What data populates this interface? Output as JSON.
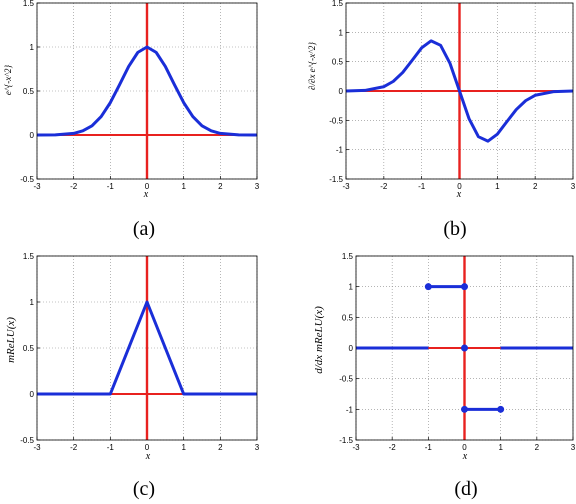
{
  "figure": {
    "panels": [
      {
        "caption": "(a)",
        "xlabel": "x",
        "ylabel": "e^{-x^2}"
      },
      {
        "caption": "(b)",
        "xlabel": "x",
        "ylabel": "∂/∂x e^{-x^2}"
      },
      {
        "caption": "(c)",
        "xlabel": "x",
        "ylabel": "mReLU(x)"
      },
      {
        "caption": "(d)",
        "xlabel": "x",
        "ylabel": "d/dx mReLU(x)"
      }
    ]
  },
  "chart_data": [
    {
      "type": "line",
      "title": "",
      "caption": "(a)",
      "xlabel": "x",
      "ylabel": "e^{-x^2}",
      "xlim": [
        -3,
        3
      ],
      "ylim": [
        -0.5,
        1.5
      ],
      "xticks": [
        "-3",
        "-2",
        "-1",
        "0",
        "1",
        "2",
        "3"
      ],
      "yticks": [
        "-0.5",
        "0",
        "0.5",
        "1",
        "1.5"
      ],
      "grid": true,
      "reference_lines": {
        "x": 0,
        "y": 0,
        "color": "#e8211f"
      },
      "series": [
        {
          "color": "#1a2ed8",
          "x": [
            -3,
            -2.5,
            -2,
            -1.75,
            -1.5,
            -1.25,
            -1,
            -0.75,
            -0.5,
            -0.25,
            0,
            0.25,
            0.5,
            0.75,
            1,
            1.25,
            1.5,
            1.75,
            2,
            2.5,
            3
          ],
          "y": [
            0,
            0.002,
            0.018,
            0.047,
            0.105,
            0.21,
            0.368,
            0.57,
            0.779,
            0.939,
            1,
            0.939,
            0.779,
            0.57,
            0.368,
            0.21,
            0.105,
            0.047,
            0.018,
            0.002,
            0
          ],
          "markers": false
        }
      ]
    },
    {
      "type": "line",
      "title": "",
      "caption": "(b)",
      "xlabel": "x",
      "ylabel": "∂/∂x e^{-x^2}",
      "xlim": [
        -3,
        3
      ],
      "ylim": [
        -1.5,
        1.5
      ],
      "xticks": [
        "-3",
        "-2",
        "-1",
        "0",
        "1",
        "2",
        "3"
      ],
      "yticks": [
        "-1.5",
        "-1",
        "-0.5",
        "0",
        "0.5",
        "1",
        "1.5"
      ],
      "grid": true,
      "reference_lines": {
        "x": 0,
        "y": 0,
        "color": "#e8211f"
      },
      "series": [
        {
          "color": "#1a2ed8",
          "x": [
            -3,
            -2.5,
            -2,
            -1.75,
            -1.5,
            -1.25,
            -1,
            -0.75,
            -0.5,
            -0.25,
            0,
            0.25,
            0.5,
            0.75,
            1,
            1.25,
            1.5,
            1.75,
            2,
            2.5,
            3
          ],
          "y": [
            0,
            0.01,
            0.073,
            0.164,
            0.316,
            0.524,
            0.736,
            0.855,
            0.779,
            0.469,
            0,
            -0.469,
            -0.779,
            -0.855,
            -0.736,
            -0.524,
            -0.316,
            -0.164,
            -0.073,
            -0.01,
            0
          ],
          "markers": false
        }
      ]
    },
    {
      "type": "line",
      "title": "",
      "caption": "(c)",
      "xlabel": "x",
      "ylabel": "mReLU(x)",
      "xlim": [
        -3,
        3
      ],
      "ylim": [
        -0.5,
        1.5
      ],
      "xticks": [
        "-3",
        "-2",
        "-1",
        "0",
        "1",
        "2",
        "3"
      ],
      "yticks": [
        "-0.5",
        "0",
        "0.5",
        "1",
        "1.5"
      ],
      "grid": true,
      "reference_lines": {
        "x": 0,
        "y": 0,
        "color": "#e8211f"
      },
      "series": [
        {
          "color": "#1a2ed8",
          "x": [
            -3,
            -1,
            0,
            1,
            3
          ],
          "y": [
            0,
            0,
            1,
            0,
            0
          ],
          "markers": false
        }
      ]
    },
    {
      "type": "line",
      "title": "",
      "caption": "(d)",
      "xlabel": "x",
      "ylabel": "d/dx mReLU(x)",
      "xlim": [
        -3,
        3
      ],
      "ylim": [
        -1.5,
        1.5
      ],
      "xticks": [
        "-3",
        "-2",
        "-1",
        "0",
        "1",
        "2",
        "3"
      ],
      "yticks": [
        "-1.5",
        "-1",
        "-0.5",
        "0",
        "0.5",
        "1",
        "1.5"
      ],
      "grid": true,
      "reference_lines": {
        "x": 0,
        "y": 0,
        "color": "#e8211f"
      },
      "series": [
        {
          "color": "#1a2ed8",
          "x": [
            -3,
            -1
          ],
          "y": [
            0,
            0
          ],
          "markers": false
        },
        {
          "color": "#1a2ed8",
          "x": [
            -1,
            0
          ],
          "y": [
            1,
            1
          ],
          "markers": true
        },
        {
          "color": "#1a2ed8",
          "x": [
            0
          ],
          "y": [
            0
          ],
          "markers": true
        },
        {
          "color": "#1a2ed8",
          "x": [
            0,
            1
          ],
          "y": [
            -1,
            -1
          ],
          "markers": true
        },
        {
          "color": "#1a2ed8",
          "x": [
            1,
            3
          ],
          "y": [
            0,
            0
          ],
          "markers": false
        }
      ]
    }
  ]
}
